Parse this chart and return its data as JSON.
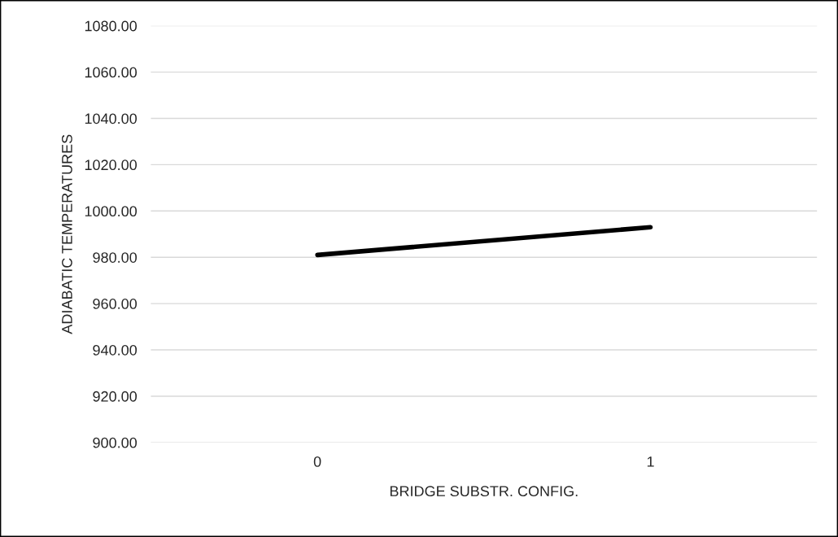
{
  "chart_data": {
    "type": "line",
    "xlabel": "BRIDGE SUBSTR. CONFIG.",
    "ylabel": "ADIABATIC TEMPERATURES",
    "categories": [
      "0",
      "1"
    ],
    "series": [
      {
        "color": "#000000",
        "values": [
          981,
          993
        ]
      }
    ],
    "ylim": [
      900,
      1080
    ],
    "yticks": [
      {
        "value": 900,
        "label": "900.00"
      },
      {
        "value": 920,
        "label": "920.00"
      },
      {
        "value": 940,
        "label": "940.00"
      },
      {
        "value": 960,
        "label": "960.00"
      },
      {
        "value": 980,
        "label": "980.00"
      },
      {
        "value": 1000,
        "label": "1000.00"
      },
      {
        "value": 1020,
        "label": "1020.00"
      },
      {
        "value": 1040,
        "label": "1040.00"
      },
      {
        "value": 1060,
        "label": "1060.00"
      },
      {
        "value": 1080,
        "label": "1080.00"
      }
    ],
    "grid": "y",
    "marker": "none",
    "line_style": "solid"
  }
}
